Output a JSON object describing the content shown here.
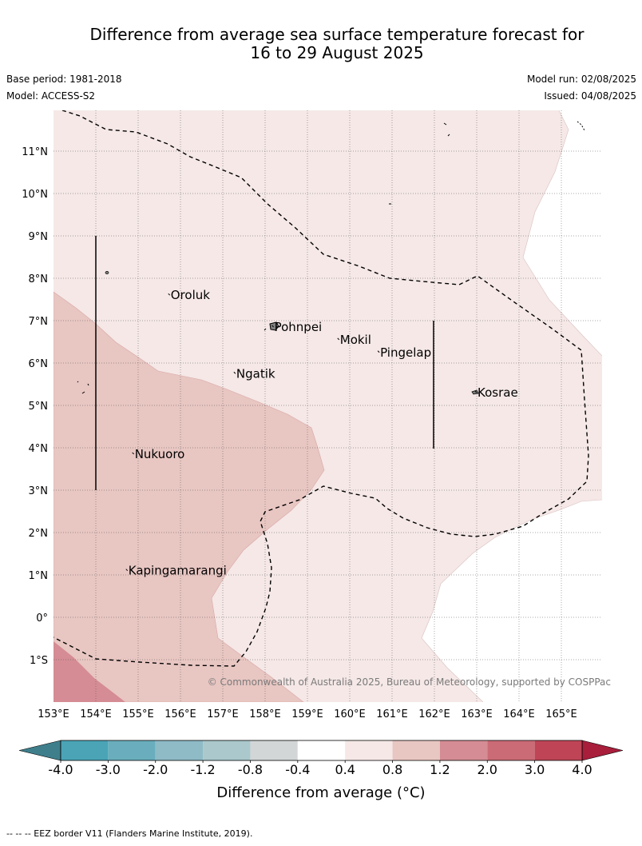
{
  "title_line1": "Difference from average sea surface temperature forecast for",
  "title_line2": "16 to 29 August 2025",
  "base_period": "Base period: 1981-2018",
  "model": "Model: ACCESS-S2",
  "model_run": "Model run: 02/08/2025",
  "issued": "Issued: 04/08/2025",
  "copyright": "© Commonwealth of Australia 2025, Bureau of Meteorology, supported by COSPPac",
  "lat_labels": [
    "11°N",
    "10°N",
    "9°N",
    "8°N",
    "7°N",
    "6°N",
    "5°N",
    "4°N",
    "3°N",
    "2°N",
    "1°N",
    "0°",
    "1°S"
  ],
  "lon_labels": [
    "153°E",
    "154°E",
    "155°E",
    "156°E",
    "157°E",
    "158°E",
    "159°E",
    "160°E",
    "161°E",
    "162°E",
    "163°E",
    "164°E",
    "165°E"
  ],
  "places": [
    {
      "name": "Oroluk",
      "lon": 155.75,
      "lat": 7.6
    },
    {
      "name": "Pohnpei",
      "lon": 158.2,
      "lat": 6.85
    },
    {
      "name": "Mokil",
      "lon": 159.75,
      "lat": 6.55
    },
    {
      "name": "Pingelap",
      "lon": 160.7,
      "lat": 6.25
    },
    {
      "name": "Ngatik",
      "lon": 157.3,
      "lat": 5.75
    },
    {
      "name": "Kosrae",
      "lon": 163.0,
      "lat": 5.3
    },
    {
      "name": "Nukuoro",
      "lon": 154.9,
      "lat": 3.85
    },
    {
      "name": "Kapingamarangi",
      "lon": 154.75,
      "lat": 1.1
    }
  ],
  "colorbar": {
    "ticks": [
      "-4.0",
      "-3.0",
      "-2.0",
      "-1.2",
      "-0.8",
      "-0.4",
      "0.4",
      "0.8",
      "1.2",
      "2.0",
      "3.0",
      "4.0"
    ],
    "colors": [
      "#4aa4b6",
      "#6aaebd",
      "#8ebbc6",
      "#abc8cc",
      "#d3d6d6",
      "#ffffff",
      "#f5e8e7",
      "#e8c6c2",
      "#d58c94",
      "#ca6b76",
      "#bf4556"
    ],
    "under_color": "#3f7f8c",
    "over_color": "#a81e3b",
    "label": "Difference from average (°C)"
  },
  "footer": "--  --  -- EEZ border V11 (Flanders Marine Institute, 2019)."
}
